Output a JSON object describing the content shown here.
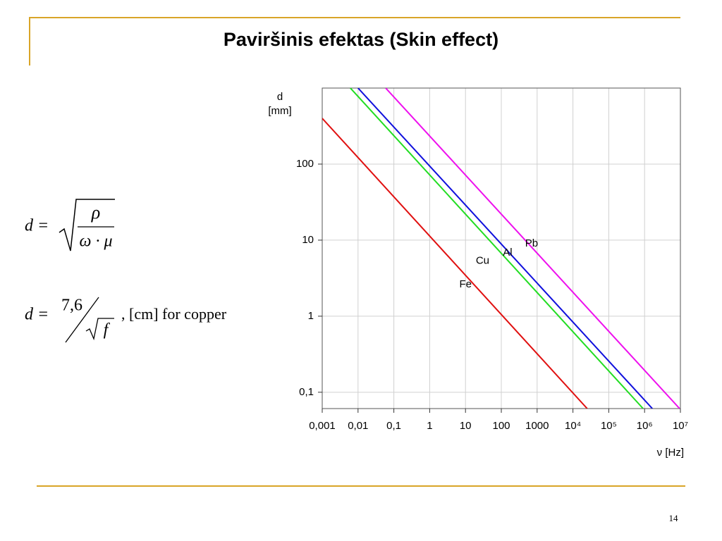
{
  "title": "Paviršinis efektas (Skin effect)",
  "formula_1": {
    "lhs": "d =",
    "numerator": "ρ",
    "denominator": "ω · μ"
  },
  "formula_2": {
    "lhs": "d =",
    "numerator": "7,6",
    "denominator": "f",
    "suffix": ", [cm] for copper"
  },
  "page_number": "14",
  "chart_data": {
    "type": "line",
    "ylabel": [
      "d",
      "[mm]"
    ],
    "xlabel": "ν [Hz]",
    "xscale": "log",
    "yscale": "log",
    "grid": true,
    "xlim": [
      0.001,
      10000000
    ],
    "ylim": [
      0.061,
      1000
    ],
    "xticks": [
      {
        "value": 0.001,
        "label": "0,001"
      },
      {
        "value": 0.01,
        "label": "0,01"
      },
      {
        "value": 0.1,
        "label": "0,1"
      },
      1,
      10,
      100,
      1000,
      {
        "value": 10000,
        "label": "10⁴"
      },
      {
        "value": 100000,
        "label": "10⁵"
      },
      {
        "value": 1000000,
        "label": "10⁶"
      },
      {
        "value": 10000000,
        "label": "10⁷"
      }
    ],
    "yticks": [
      {
        "value": 0.1,
        "label": "0,1"
      },
      1,
      10,
      100
    ],
    "series": [
      {
        "name": "Fe",
        "color": "#e01010",
        "x": [
          0.001,
          25000
        ],
        "values": [
          400,
          0.061
        ],
        "label_at": [
          10,
          2.6
        ]
      },
      {
        "name": "Cu",
        "color": "#22dd22",
        "x": [
          0.0061,
          910000
        ],
        "values": [
          1000,
          0.061
        ],
        "label_at": [
          30,
          5.3
        ]
      },
      {
        "name": "Al",
        "color": "#1010dd",
        "x": [
          0.01,
          1650000
        ],
        "values": [
          1000,
          0.061
        ],
        "label_at": [
          150,
          6.8
        ]
      },
      {
        "name": "Pb",
        "color": "#ee10ee",
        "x": [
          0.059,
          9500000
        ],
        "values": [
          1000,
          0.061
        ],
        "label_at": [
          700,
          9
        ]
      }
    ]
  }
}
